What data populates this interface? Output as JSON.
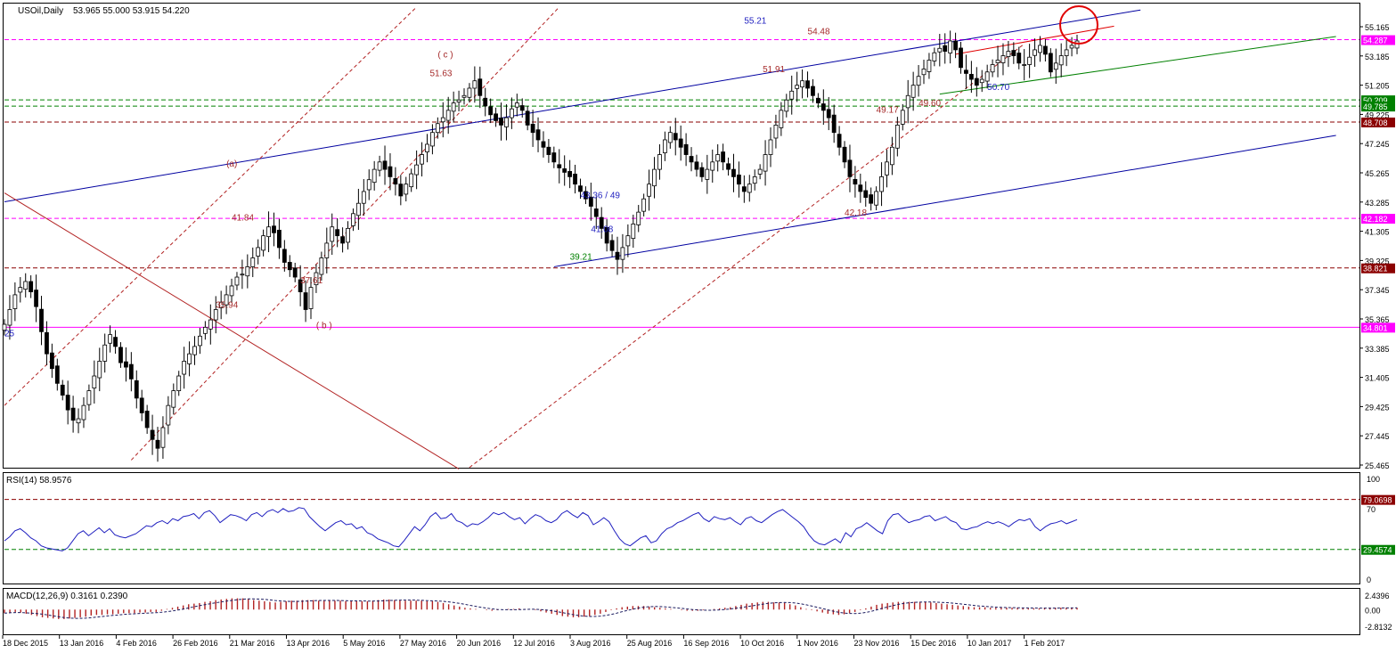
{
  "chart_data": [
    {
      "type": "candlestick",
      "title": "USOil,Daily",
      "ohlc_text": "53.965 55.000 53.915 54.220",
      "ylim": [
        25.465,
        55.165
      ],
      "y_ticks": [
        "55.165",
        "53.185",
        "51.205",
        "49.225",
        "47.245",
        "45.265",
        "43.285",
        "41.305",
        "39.325",
        "37.345",
        "35.365",
        "33.385",
        "31.405",
        "29.425",
        "27.445",
        "25.465"
      ],
      "close_series": [
        35.0,
        36.0,
        37.0,
        37.5,
        37.9,
        37.2,
        36.2,
        34.5,
        33.0,
        32.0,
        31.0,
        30.2,
        29.2,
        28.5,
        28.6,
        29.5,
        30.5,
        31.5,
        32.5,
        33.6,
        34.3,
        33.5,
        32.4,
        32.1,
        31.3,
        30.0,
        29.0,
        28.0,
        27.2,
        26.6,
        28.0,
        29.5,
        30.5,
        31.5,
        32.5,
        33.0,
        33.5,
        34.2,
        34.8,
        35.3,
        36.0,
        36.5,
        37.0,
        37.6,
        38.2,
        38.4,
        38.9,
        39.5,
        40.2,
        41.0,
        41.6,
        41.2,
        40.2,
        39.2,
        38.7,
        38.2,
        37.2,
        36.0,
        37.5,
        38.5,
        39.5,
        40.5,
        41.6,
        41.0,
        40.5,
        41.5,
        42.5,
        43.2,
        44.0,
        44.8,
        45.5,
        46.0,
        45.5,
        45.0,
        44.5,
        43.7,
        44.5,
        45.2,
        45.8,
        46.5,
        47.2,
        48.0,
        48.6,
        49.0,
        49.5,
        50.0,
        50.2,
        50.5,
        51.0,
        51.5,
        50.5,
        49.8,
        49.2,
        48.8,
        48.5,
        49.0,
        49.6,
        50.0,
        49.5,
        48.5,
        48.0,
        47.5,
        47.0,
        46.5,
        46.0,
        45.6,
        45.3,
        45.0,
        44.5,
        44.0,
        43.5,
        43.0,
        42.3,
        41.5,
        40.5,
        40.0,
        39.4,
        40.2,
        41.0,
        41.8,
        42.6,
        43.5,
        44.5,
        45.5,
        46.5,
        47.5,
        48.0,
        47.5,
        47.0,
        46.5,
        46.0,
        45.5,
        45.0,
        45.5,
        46.0,
        46.5,
        46.0,
        45.5,
        45.0,
        44.5,
        44.0,
        44.5,
        45.0,
        45.5,
        46.5,
        47.5,
        48.5,
        49.5,
        50.2,
        50.8,
        51.2,
        51.5,
        51.0,
        50.5,
        50.0,
        49.5,
        49.0,
        48.0,
        47.0,
        46.0,
        45.0,
        44.5,
        44.0,
        43.6,
        43.2,
        44.0,
        45.0,
        46.0,
        47.0,
        48.5,
        49.5,
        50.5,
        51.2,
        51.8,
        52.3,
        52.9,
        53.4,
        53.7,
        53.5,
        54.2,
        53.6,
        52.4,
        52.0,
        51.6,
        51.2,
        51.6,
        52.1,
        52.6,
        52.9,
        53.2,
        53.5,
        53.2,
        52.7,
        52.6,
        53.1,
        53.6,
        53.9,
        53.3,
        52.1,
        52.7,
        53.2,
        53.6,
        53.9,
        54.2
      ],
      "horizontal_levels": [
        {
          "value": "54.287",
          "color": "#ff00ff"
        },
        {
          "value": "50.209",
          "color": "#008000"
        },
        {
          "value": "49.785",
          "color": "#008000"
        },
        {
          "value": "48.708",
          "color": "#8b0000"
        },
        {
          "value": "42.182",
          "color": "#ff00ff"
        },
        {
          "value": "38.821",
          "color": "#8b0000"
        },
        {
          "value": "34.801",
          "color": "#ff00ff"
        }
      ],
      "annotations": [
        {
          "text": "55.21",
          "color": "#1f1fbf",
          "at": [
            140,
            55.21
          ]
        },
        {
          "text": "54.48",
          "color": "#a52a2a",
          "at": [
            152,
            54.48
          ]
        },
        {
          "text": "51.91",
          "color": "#a52a2a",
          "at": [
            143.5,
            51.91
          ]
        },
        {
          "text": "51.63",
          "color": "#a52a2a",
          "at": [
            80.5,
            51.63
          ]
        },
        {
          "text": "( c )",
          "color": "#a52a2a",
          "at": [
            82,
            52.9
          ]
        },
        {
          "text": "49.17",
          "color": "#a52a2a",
          "at": [
            165,
            49.17
          ]
        },
        {
          "text": "50.70",
          "color": "#1f1fbf",
          "at": [
            186,
            50.7
          ]
        },
        {
          "text": "49.60",
          "color": "#a52a2a",
          "at": [
            173,
            49.6
          ]
        },
        {
          "text": "(a)",
          "color": "#a52a2a",
          "at": [
            42,
            45.5
          ]
        },
        {
          "text": "41.84",
          "color": "#a52a2a",
          "at": [
            43,
            41.84
          ]
        },
        {
          "text": "43.36 / 49",
          "color": "#1f1fbf",
          "at": [
            109,
            43.36
          ]
        },
        {
          "text": "41.08",
          "color": "#1f1fbf",
          "at": [
            111,
            41.08
          ]
        },
        {
          "text": "39.21",
          "color": "#008000",
          "at": [
            107,
            39.21
          ]
        },
        {
          "text": "42.18",
          "color": "#a52a2a",
          "at": [
            159,
            42.18
          ]
        },
        {
          "text": "37.61",
          "color": "#a52a2a",
          "at": [
            56,
            37.61
          ]
        },
        {
          "text": "35.94",
          "color": "#a52a2a",
          "at": [
            40,
            35.94
          ]
        },
        {
          "text": "( b )",
          "color": "#a52a2a",
          "at": [
            59,
            34.55
          ]
        },
        {
          "text": "25",
          "color": "#1f1fbf",
          "at": [
            0,
            34.0
          ]
        }
      ],
      "x_labels": [
        "18 Dec 2015",
        "13 Jan 2016",
        "4 Feb 2016",
        "26 Feb 2016",
        "21 Mar 2016",
        "13 Apr 2016",
        "5 May 2016",
        "27 May 2016",
        "20 Jun 2016",
        "12 Jul 2016",
        "3 Aug 2016",
        "25 Aug 2016",
        "16 Sep 2016",
        "10 Oct 2016",
        "1 Nov 2016",
        "23 Nov 2016",
        "15 Dec 2016",
        "10 Jan 2017",
        "1 Feb 2017"
      ],
      "colors": {
        "candle": "#000000",
        "channel": "#0000a0",
        "fork": "#b22222",
        "support": "#008000",
        "circle": "#e00000"
      }
    },
    {
      "type": "line",
      "title": "RSI(14) 58.9576",
      "ylim": [
        0,
        100
      ],
      "y_ticks": [
        "100",
        "70",
        "0"
      ],
      "levels": [
        "79.0698",
        "29.4574"
      ],
      "values": [
        38,
        42,
        48,
        50,
        46,
        41,
        38,
        33,
        31,
        30,
        29,
        28,
        31,
        38,
        45,
        48,
        43,
        47,
        51,
        46,
        50,
        44,
        42,
        41,
        43,
        45,
        49,
        53,
        52,
        56,
        58,
        55,
        60,
        58,
        62,
        63,
        65,
        60,
        66,
        68,
        63,
        56,
        60,
        64,
        63,
        61,
        58,
        64,
        66,
        62,
        67,
        69,
        66,
        70,
        67,
        68,
        71,
        70,
        62,
        57,
        52,
        48,
        52,
        56,
        58,
        54,
        55,
        50,
        52,
        46,
        44,
        40,
        38,
        36,
        33,
        32,
        38,
        45,
        52,
        48,
        54,
        62,
        66,
        60,
        61,
        65,
        58,
        56,
        52,
        55,
        54,
        57,
        61,
        66,
        64,
        66,
        62,
        59,
        61,
        55,
        60,
        64,
        62,
        58,
        56,
        59,
        65,
        68,
        64,
        61,
        66,
        63,
        54,
        57,
        61,
        57,
        48,
        40,
        35,
        33,
        37,
        41,
        43,
        36,
        38,
        45,
        50,
        52,
        56,
        58,
        61,
        64,
        66,
        60,
        57,
        62,
        60,
        59,
        61,
        57,
        54,
        60,
        62,
        58,
        56,
        60,
        64,
        67,
        69,
        65,
        61,
        57,
        52,
        44,
        38,
        35,
        34,
        37,
        40,
        36,
        46,
        42,
        50,
        52,
        56,
        52,
        48,
        45,
        58,
        64,
        65,
        60,
        56,
        58,
        59,
        62,
        63,
        58,
        60,
        62,
        58,
        56,
        50,
        49,
        51,
        52,
        55,
        57,
        55,
        57,
        55,
        52,
        56,
        59,
        58,
        60,
        52,
        48,
        52,
        55,
        56,
        58,
        55,
        57,
        59
      ]
    },
    {
      "type": "bar",
      "title": "MACD(12,26,9) 0.3161 0.2390",
      "ylim": [
        -2.8132,
        2.4396
      ],
      "y_ticks": [
        "2.4396",
        "0.00",
        "-2.8132"
      ],
      "values": [
        -0.6,
        -0.5,
        -0.4,
        -0.5,
        -0.7,
        -0.9,
        -1.1,
        -1.3,
        -1.4,
        -1.5,
        -1.6,
        -1.6,
        -1.5,
        -1.4,
        -1.3,
        -1.2,
        -1.0,
        -0.9,
        -0.9,
        -0.8,
        -0.8,
        -0.7,
        -0.6,
        -0.6,
        -0.6,
        -0.5,
        -0.5,
        -0.4,
        -0.4,
        -0.2,
        0.1,
        0.3,
        0.5,
        0.7,
        0.9,
        1.0,
        1.1,
        1.3,
        1.4,
        1.6,
        1.7,
        1.8,
        1.9,
        1.9,
        1.9,
        1.8,
        1.6,
        1.5,
        1.4,
        1.3,
        1.2,
        1.3,
        1.4,
        1.5,
        1.5,
        1.6,
        1.6,
        1.6,
        1.5,
        1.5,
        1.5,
        1.5,
        1.5,
        1.4,
        1.4,
        1.4,
        1.4,
        1.4,
        1.5,
        1.6,
        1.7,
        1.7,
        1.6,
        1.6,
        1.5,
        1.5,
        1.5,
        1.5,
        1.4,
        1.4,
        1.3,
        1.1,
        0.9,
        0.7,
        0.5,
        0.3,
        0.2,
        0.1,
        0.0,
        -0.1,
        -0.2,
        -0.1,
        0.0,
        0.1,
        0.1,
        0.2,
        0.1,
        0.0,
        -0.1,
        -0.3,
        -0.5,
        -0.7,
        -0.9,
        -1.1,
        -1.2,
        -1.3,
        -1.3,
        -1.2,
        -1.1,
        -0.9,
        -0.7,
        -0.4,
        -0.1,
        0.2,
        0.4,
        0.5,
        0.6,
        0.6,
        0.6,
        0.5,
        0.4,
        0.3,
        0.2,
        0.1,
        0.0,
        -0.1,
        -0.2,
        -0.2,
        -0.2,
        -0.1,
        0.0,
        0.1,
        0.2,
        0.3,
        0.4,
        0.6,
        0.8,
        1.0,
        1.1,
        1.2,
        1.3,
        1.3,
        1.2,
        1.2,
        1.1,
        0.9,
        0.7,
        0.4,
        0.1,
        -0.1,
        -0.3,
        -0.5,
        -0.7,
        -0.8,
        -0.9,
        -0.8,
        -0.6,
        -0.4,
        -0.1,
        0.2,
        0.5,
        0.8,
        1.0,
        1.1,
        1.2,
        1.3,
        1.3,
        1.3,
        1.3,
        1.3,
        1.3,
        1.2,
        1.1,
        1.0,
        0.9,
        0.8,
        0.7,
        0.6,
        0.5,
        0.4,
        0.4,
        0.4,
        0.3,
        0.3,
        0.3,
        0.3,
        0.3,
        0.3,
        0.2,
        0.2,
        0.2,
        0.2,
        0.3,
        0.3,
        0.3,
        0.3,
        0.3,
        0.3,
        0.3
      ],
      "colors": {
        "histogram": "#b22222",
        "signal": "#1a1a5e"
      }
    }
  ]
}
